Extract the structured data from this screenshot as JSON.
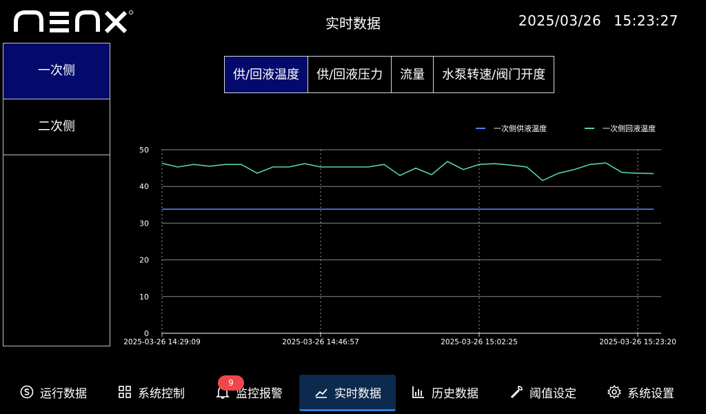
{
  "header": {
    "logo_text": "NENX",
    "title": "实时数据",
    "date": "2025/03/26",
    "time": "15:23:27"
  },
  "sidebar": {
    "items": [
      {
        "label": "一次侧",
        "active": true
      },
      {
        "label": "二次侧",
        "active": false
      }
    ]
  },
  "tabs": [
    {
      "label": "供/回液温度",
      "active": true
    },
    {
      "label": "供/回液压力",
      "active": false
    },
    {
      "label": "流量",
      "active": false
    },
    {
      "label": "水泵转速/阀门开度",
      "active": false
    }
  ],
  "chart_data": {
    "type": "line",
    "title": "",
    "xlabel": "",
    "ylabel": "",
    "ylim": [
      0,
      50
    ],
    "yticks": [
      0,
      10,
      20,
      30,
      40,
      50
    ],
    "x_tick_labels": [
      "2025-03-26 14:29:09",
      "2025-03-26 14:46:57",
      "2025-03-26 15:02:25",
      "2025-03-26 15:23:20"
    ],
    "x_count": 32,
    "x_tick_indices": [
      0,
      10,
      20,
      30
    ],
    "legend_position": "top-right",
    "grid": true,
    "series": [
      {
        "name": "一次侧供液温度",
        "color": "#5b7cf0",
        "values": [
          33.8,
          33.8,
          33.8,
          33.8,
          33.8,
          33.8,
          33.8,
          33.8,
          33.8,
          33.8,
          33.8,
          33.8,
          33.8,
          33.8,
          33.8,
          33.8,
          33.8,
          33.8,
          33.8,
          33.8,
          33.8,
          33.8,
          33.8,
          33.8,
          33.8,
          33.8,
          33.8,
          33.8,
          33.8,
          33.8,
          33.8,
          33.8
        ]
      },
      {
        "name": "一次侧回液温度",
        "color": "#59d4a0",
        "values": [
          46.3,
          45.3,
          46.0,
          45.5,
          46.0,
          46.0,
          43.6,
          45.3,
          45.3,
          46.2,
          45.3,
          45.3,
          45.3,
          45.3,
          46.0,
          43.0,
          45.0,
          43.2,
          46.8,
          44.6,
          46.0,
          46.2,
          45.8,
          45.3,
          41.6,
          43.6,
          44.6,
          46.0,
          46.4,
          43.8,
          43.6,
          43.5
        ]
      }
    ]
  },
  "bottom_nav": {
    "alarm_count": "9",
    "items": [
      {
        "label": "运行数据",
        "icon": "skype-icon",
        "active": false
      },
      {
        "label": "系统控制",
        "icon": "grid-icon",
        "active": false
      },
      {
        "label": "监控报警",
        "icon": "bell-icon",
        "active": false
      },
      {
        "label": "实时数据",
        "icon": "trend-icon",
        "active": true
      },
      {
        "label": "历史数据",
        "icon": "bar-chart-icon",
        "active": false
      },
      {
        "label": "阈值设定",
        "icon": "wrench-icon",
        "active": false
      },
      {
        "label": "系统设置",
        "icon": "gear-icon",
        "active": false
      }
    ]
  }
}
